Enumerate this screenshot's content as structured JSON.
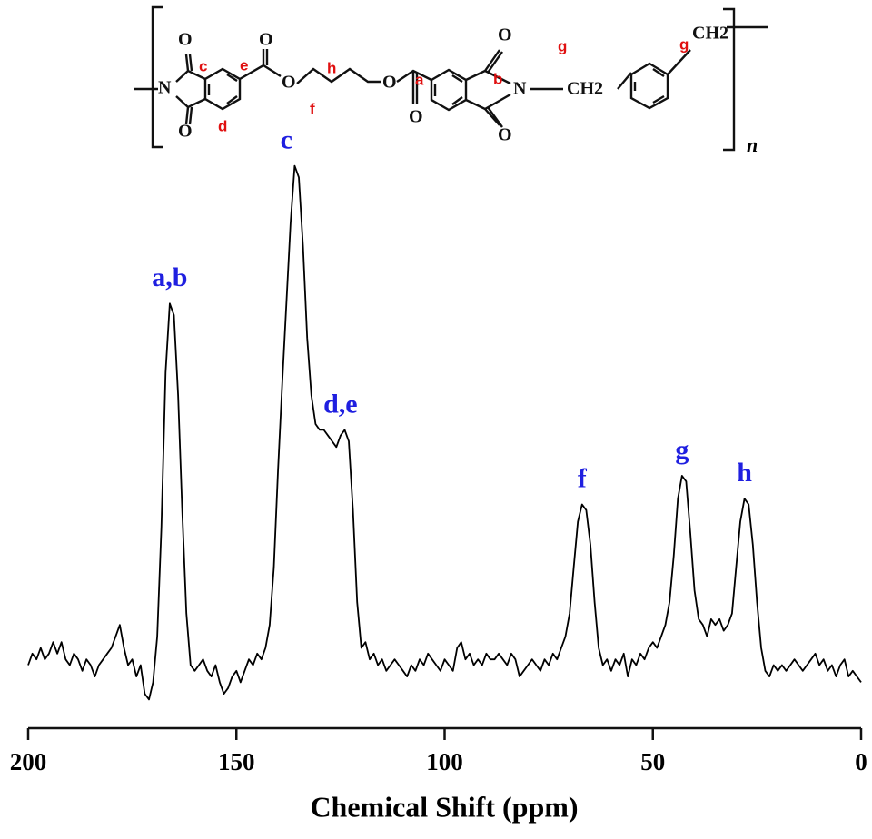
{
  "chart_data": {
    "type": "line",
    "xlabel": "Chemical Shift (ppm)",
    "xlim": [
      200,
      0
    ],
    "xticks": [
      200,
      150,
      100,
      50,
      0
    ],
    "ylim": [
      0,
      100
    ],
    "color": "#000000",
    "annotation_color": "#1f1fe0",
    "x": [
      200,
      199,
      198,
      197,
      196,
      195,
      194,
      193,
      192,
      191,
      190,
      189,
      188,
      187,
      186,
      185,
      184,
      183,
      182,
      181,
      180,
      179,
      178,
      177,
      176,
      175,
      174,
      173,
      172,
      171,
      170,
      169,
      168,
      167,
      166,
      165,
      164,
      163,
      162,
      161,
      160,
      159,
      158,
      157,
      156,
      155,
      154,
      153,
      152,
      151,
      150,
      149,
      148,
      147,
      146,
      145,
      144,
      143,
      142,
      141,
      140,
      139,
      138,
      137,
      136,
      135,
      134,
      133,
      132,
      131,
      130,
      129,
      128,
      127,
      126,
      125,
      124,
      123,
      122,
      121,
      120,
      119,
      118,
      117,
      116,
      115,
      114,
      113,
      112,
      111,
      110,
      109,
      108,
      107,
      106,
      105,
      104,
      103,
      102,
      101,
      100,
      99,
      98,
      97,
      96,
      95,
      94,
      93,
      92,
      91,
      90,
      89,
      88,
      87,
      86,
      85,
      84,
      83,
      82,
      81,
      80,
      79,
      78,
      77,
      76,
      75,
      74,
      73,
      72,
      71,
      70,
      69,
      68,
      67,
      66,
      65,
      64,
      63,
      62,
      61,
      60,
      59,
      58,
      57,
      56,
      55,
      54,
      53,
      52,
      51,
      50,
      49,
      48,
      47,
      46,
      45,
      44,
      43,
      42,
      41,
      40,
      39,
      38,
      37,
      36,
      35,
      34,
      33,
      32,
      31,
      30,
      29,
      28,
      27,
      26,
      25,
      24,
      23,
      22,
      21,
      20,
      19,
      18,
      17,
      16,
      15,
      14,
      13,
      12,
      11,
      10,
      9,
      8,
      7,
      6,
      5,
      4,
      3,
      2,
      1,
      0
    ],
    "values": [
      11,
      13,
      12,
      14,
      12,
      13,
      15,
      13,
      15,
      12,
      11,
      13,
      12,
      10,
      12,
      11,
      9,
      11,
      12,
      13,
      14,
      16,
      18,
      14,
      11,
      12,
      9,
      11,
      6,
      5,
      8,
      16,
      35,
      62,
      74,
      72,
      58,
      38,
      20,
      11,
      10,
      11,
      12,
      10,
      9,
      11,
      8,
      6,
      7,
      9,
      10,
      8,
      10,
      12,
      11,
      13,
      12,
      14,
      18,
      28,
      45,
      60,
      74,
      88,
      98,
      96,
      84,
      68,
      58,
      53,
      52,
      52,
      51,
      50,
      49,
      51,
      52,
      50,
      38,
      22,
      14,
      15,
      12,
      13,
      11,
      12,
      10,
      11,
      12,
      11,
      10,
      9,
      11,
      10,
      12,
      11,
      13,
      12,
      11,
      10,
      12,
      11,
      10,
      14,
      15,
      12,
      13,
      11,
      12,
      11,
      13,
      12,
      12,
      13,
      12,
      11,
      13,
      12,
      9,
      10,
      11,
      12,
      11,
      10,
      12,
      11,
      13,
      12,
      14,
      16,
      20,
      28,
      36,
      39,
      38,
      32,
      22,
      14,
      11,
      12,
      10,
      12,
      11,
      13,
      9,
      12,
      11,
      13,
      12,
      14,
      15,
      14,
      16,
      18,
      22,
      30,
      40,
      44,
      43,
      34,
      24,
      19,
      18,
      16,
      19,
      18,
      19,
      17,
      18,
      20,
      28,
      36,
      40,
      39,
      32,
      22,
      14,
      10,
      9,
      11,
      10,
      11,
      10,
      11,
      12,
      11,
      10,
      11,
      12,
      13,
      11,
      12,
      10,
      11,
      9,
      11,
      12,
      9,
      10,
      9,
      8
    ],
    "annotations": [
      {
        "text": "a,b",
        "x": 166
      },
      {
        "text": "c",
        "x": 138
      },
      {
        "text": "d,e",
        "x": 125
      },
      {
        "text": "f",
        "x": 67
      },
      {
        "text": "g",
        "x": 43
      },
      {
        "text": "h",
        "x": 28
      }
    ]
  },
  "structure": {
    "atoms": [
      "O",
      "N",
      "O",
      "O",
      "O",
      "O",
      "O",
      "O",
      "N",
      "O",
      "CH2",
      "CH2"
    ],
    "labels": [
      "c",
      "e",
      "d",
      "h",
      "f",
      "a",
      "b",
      "g",
      "g"
    ],
    "repeat": "n"
  }
}
